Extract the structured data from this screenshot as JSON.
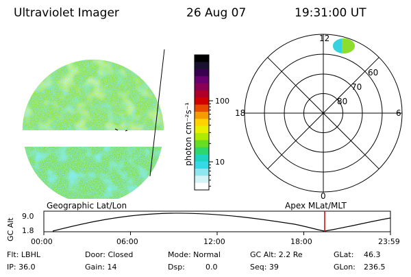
{
  "header": {
    "instrument": "Ultraviolet Imager",
    "date": "26 Aug 07",
    "time": "19:31:00 UT"
  },
  "colorbar": {
    "unit_label": "photon cm⁻²s⁻¹",
    "ticks": [
      "100",
      "10"
    ],
    "colors": [
      "#000000",
      "#1a1030",
      "#3a0050",
      "#6a0070",
      "#8a0055",
      "#b0002a",
      "#d20000",
      "#e84a00",
      "#f59a00",
      "#ffd200",
      "#e8f000",
      "#b0ea00",
      "#66dd22",
      "#2ed66e",
      "#1ed3c2",
      "#36d9e6",
      "#8ee6ee",
      "#d2f4f6",
      "#ffffff"
    ]
  },
  "polar": {
    "mlt_labels": [
      "12",
      "18",
      "6",
      "0"
    ],
    "lat_labels": [
      "60",
      "70",
      "80"
    ]
  },
  "timeline": {
    "left_label": "Geographic Lat/Lon",
    "right_label": "Apex  MLat/MLT",
    "y_axis_title": "GC Alt",
    "y_ticks": [
      "9.0",
      "1.8"
    ],
    "x_ticks": [
      "00:00",
      "06:00",
      "12:00",
      "18:00",
      "23:59"
    ],
    "marker_color": "#cc0000"
  },
  "status": {
    "flt": "Flt: LBHL",
    "ip": "IP: 36.0",
    "door": "Door: Closed",
    "gain": "Gain: 14",
    "mode": "Mode: Normal",
    "dsp_label": "Dsp:",
    "dsp_value": "0.0",
    "gc_alt": "GC Alt: 2.2 Re",
    "seq": "Seq: 39",
    "glat_label": "GLat:",
    "glat_value": "46.3",
    "glon_label": "GLon:",
    "glon_value": "236.5"
  },
  "colors": {
    "earth_green": "#9adf3a",
    "earth_cyan": "#3ed7d2",
    "earth_yellow": "#d6ec38",
    "polar_cyan": "#36d2df",
    "polar_green": "#8cdd2c"
  }
}
